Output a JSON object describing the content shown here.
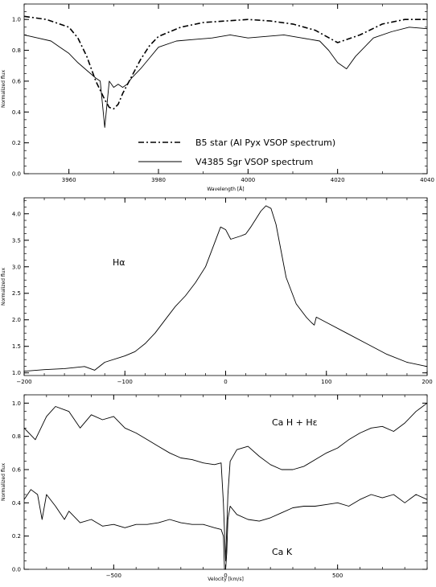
{
  "chart_data": [
    {
      "type": "line",
      "xlabel": "Wavelength [Å]",
      "ylabel": "Normalized flux",
      "xlim": [
        3950,
        4040
      ],
      "ylim": [
        0.0,
        1.1
      ],
      "xticks": [
        "3960",
        "3980",
        "4000",
        "4020",
        "4040"
      ],
      "yticks": [
        "0.0",
        "0.2",
        "0.4",
        "0.6",
        "0.8",
        "1.0"
      ],
      "legend_position": "lower-center",
      "series": [
        {
          "name": "B5 star (AI Pyx VSOP spectrum)",
          "style": "dash-dot",
          "x": [
            3950,
            3955,
            3960,
            3962,
            3964,
            3966,
            3968,
            3969,
            3970,
            3971,
            3972,
            3974,
            3976,
            3978,
            3980,
            3985,
            3990,
            3995,
            4000,
            4005,
            4010,
            4015,
            4020,
            4025,
            4030,
            4035,
            4040
          ],
          "y": [
            1.02,
            1.0,
            0.95,
            0.88,
            0.76,
            0.6,
            0.48,
            0.43,
            0.42,
            0.45,
            0.52,
            0.63,
            0.74,
            0.83,
            0.89,
            0.95,
            0.98,
            0.99,
            1.0,
            0.99,
            0.97,
            0.93,
            0.85,
            0.9,
            0.97,
            1.0,
            1.0
          ]
        },
        {
          "name": "V4385 Sgr VSOP spectrum",
          "style": "solid",
          "x": [
            3950,
            3953,
            3956,
            3958,
            3960,
            3962,
            3964,
            3966,
            3967,
            3968,
            3969,
            3970,
            3971,
            3972,
            3973,
            3974,
            3976,
            3978,
            3980,
            3984,
            3988,
            3992,
            3996,
            4000,
            4004,
            4008,
            4012,
            4016,
            4018,
            4020,
            4022,
            4024,
            4028,
            4032,
            4036,
            4040
          ],
          "y": [
            0.9,
            0.88,
            0.86,
            0.82,
            0.78,
            0.72,
            0.67,
            0.62,
            0.6,
            0.3,
            0.6,
            0.56,
            0.58,
            0.56,
            0.58,
            0.62,
            0.68,
            0.75,
            0.82,
            0.86,
            0.87,
            0.88,
            0.9,
            0.88,
            0.89,
            0.9,
            0.88,
            0.86,
            0.8,
            0.72,
            0.68,
            0.76,
            0.88,
            0.92,
            0.95,
            0.94
          ]
        }
      ]
    },
    {
      "type": "line",
      "xlabel": "",
      "ylabel": "Normalized flux",
      "xlim": [
        -200,
        200
      ],
      "ylim": [
        0.95,
        4.3
      ],
      "xticks": [
        "−200",
        "−100",
        "0",
        "100",
        "200"
      ],
      "yticks": [
        "1.0",
        "1.5",
        "2.0",
        "2.5",
        "3.0",
        "3.5",
        "4.0"
      ],
      "annotations": [
        "Hα"
      ],
      "series": [
        {
          "x": [
            -200,
            -180,
            -160,
            -140,
            -130,
            -120,
            -100,
            -90,
            -80,
            -70,
            -60,
            -50,
            -40,
            -30,
            -20,
            -10,
            -5,
            0,
            5,
            10,
            15,
            20,
            25,
            30,
            35,
            40,
            45,
            50,
            55,
            60,
            70,
            80,
            85,
            88,
            90,
            100,
            120,
            140,
            160,
            180,
            200
          ],
          "y": [
            1.03,
            1.06,
            1.08,
            1.12,
            1.05,
            1.2,
            1.32,
            1.4,
            1.55,
            1.75,
            2.0,
            2.25,
            2.45,
            2.7,
            3.0,
            3.5,
            3.75,
            3.7,
            3.52,
            3.55,
            3.58,
            3.62,
            3.75,
            3.9,
            4.05,
            4.15,
            4.1,
            3.8,
            3.3,
            2.8,
            2.3,
            2.05,
            1.95,
            1.9,
            2.05,
            1.95,
            1.75,
            1.55,
            1.35,
            1.2,
            1.12
          ]
        }
      ]
    },
    {
      "type": "line",
      "xlabel": "Velocity [km/s]",
      "ylabel": "Normalized flux",
      "xlim": [
        -900,
        900
      ],
      "ylim": [
        0.0,
        1.05
      ],
      "xticks": [
        "−500",
        "0",
        "500"
      ],
      "yticks": [
        "0.0",
        "0.2",
        "0.4",
        "0.6",
        "0.8",
        "1.0"
      ],
      "annotations": [
        "Ca H + Hε",
        "Ca K"
      ],
      "series": [
        {
          "x": [
            -900,
            -850,
            -800,
            -760,
            -700,
            -650,
            -600,
            -550,
            -500,
            -450,
            -400,
            -350,
            -300,
            -250,
            -200,
            -150,
            -100,
            -50,
            -20,
            -10,
            0,
            10,
            20,
            50,
            100,
            150,
            200,
            250,
            300,
            350,
            400,
            450,
            500,
            550,
            600,
            650,
            700,
            750,
            800,
            850,
            900
          ],
          "y": [
            0.85,
            0.78,
            0.92,
            0.98,
            0.95,
            0.85,
            0.93,
            0.9,
            0.92,
            0.85,
            0.82,
            0.78,
            0.74,
            0.7,
            0.67,
            0.66,
            0.64,
            0.63,
            0.64,
            0.4,
            0.05,
            0.45,
            0.65,
            0.72,
            0.74,
            0.68,
            0.63,
            0.6,
            0.6,
            0.62,
            0.66,
            0.7,
            0.73,
            0.78,
            0.82,
            0.85,
            0.86,
            0.83,
            0.88,
            0.95,
            1.0
          ]
        },
        {
          "x": [
            -900,
            -870,
            -840,
            -820,
            -800,
            -760,
            -720,
            -700,
            -650,
            -600,
            -550,
            -500,
            -450,
            -400,
            -350,
            -300,
            -250,
            -200,
            -150,
            -100,
            -50,
            -20,
            -10,
            -5,
            0,
            5,
            10,
            20,
            50,
            100,
            150,
            200,
            250,
            300,
            350,
            400,
            450,
            500,
            550,
            600,
            650,
            700,
            750,
            800,
            850,
            900
          ],
          "y": [
            0.42,
            0.48,
            0.45,
            0.3,
            0.45,
            0.38,
            0.3,
            0.35,
            0.28,
            0.3,
            0.26,
            0.27,
            0.25,
            0.27,
            0.27,
            0.28,
            0.3,
            0.28,
            0.27,
            0.27,
            0.25,
            0.24,
            0.2,
            0.0,
            0.0,
            0.1,
            0.3,
            0.38,
            0.33,
            0.3,
            0.29,
            0.31,
            0.34,
            0.37,
            0.38,
            0.38,
            0.39,
            0.4,
            0.38,
            0.42,
            0.45,
            0.43,
            0.45,
            0.4,
            0.45,
            0.42
          ]
        }
      ]
    }
  ]
}
